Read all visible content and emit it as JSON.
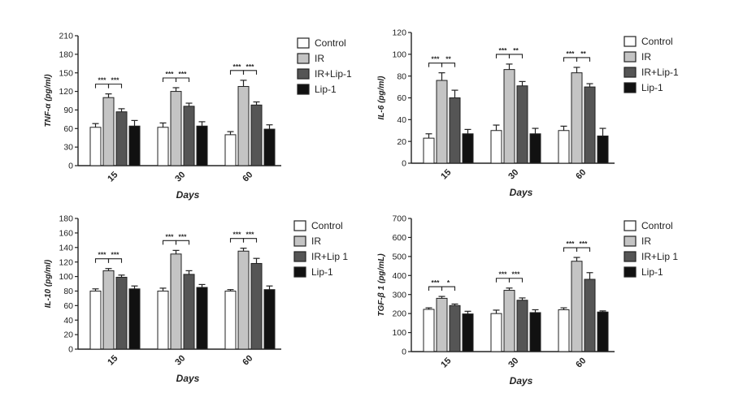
{
  "legend_series_styles": [
    "#ffffff",
    "#c4c4c4",
    "#555555",
    "#111111"
  ],
  "chart_data": [
    {
      "id": "tnf",
      "type": "bar",
      "title": "",
      "xlabel": "Days",
      "ylabel": "TNF-α (pg/ml)",
      "ylim": [
        0,
        210
      ],
      "yticks": [
        0,
        30,
        60,
        90,
        120,
        150,
        180,
        210
      ],
      "categories": [
        "15",
        "30",
        "60"
      ],
      "series": [
        {
          "name": "Control",
          "color": "#ffffff",
          "values": [
            62,
            62,
            50
          ],
          "errors": [
            6,
            7,
            5
          ]
        },
        {
          "name": "IR",
          "color": "#c4c4c4",
          "values": [
            110,
            120,
            128
          ],
          "errors": [
            6,
            6,
            10
          ]
        },
        {
          "name": "IR+Lip-1",
          "color": "#555555",
          "values": [
            87,
            96,
            98
          ],
          "errors": [
            5,
            5,
            5
          ]
        },
        {
          "name": "Lip-1",
          "color": "#111111",
          "values": [
            64,
            64,
            59
          ],
          "errors": [
            9,
            7,
            7
          ]
        }
      ],
      "significance": [
        {
          "category": 0,
          "from": 0,
          "to": 1,
          "label": "***"
        },
        {
          "category": 0,
          "from": 1,
          "to": 2,
          "label": "***"
        },
        {
          "category": 1,
          "from": 0,
          "to": 1,
          "label": "***"
        },
        {
          "category": 1,
          "from": 1,
          "to": 2,
          "label": "***"
        },
        {
          "category": 2,
          "from": 0,
          "to": 1,
          "label": "***"
        },
        {
          "category": 2,
          "from": 1,
          "to": 2,
          "label": "***"
        }
      ]
    },
    {
      "id": "il6",
      "type": "bar",
      "title": "",
      "xlabel": "Days",
      "ylabel": "IL-6 (pg/ml)",
      "ylim": [
        0,
        120
      ],
      "yticks": [
        0,
        20,
        40,
        60,
        80,
        100,
        120
      ],
      "categories": [
        "15",
        "30",
        "60"
      ],
      "series": [
        {
          "name": "Control",
          "color": "#ffffff",
          "values": [
            23,
            30,
            30
          ],
          "errors": [
            4,
            5,
            4
          ]
        },
        {
          "name": "IR",
          "color": "#c4c4c4",
          "values": [
            76,
            86,
            83
          ],
          "errors": [
            7,
            5,
            5
          ]
        },
        {
          "name": "IR+Lip-1",
          "color": "#555555",
          "values": [
            60,
            71,
            70
          ],
          "errors": [
            7,
            4,
            3
          ]
        },
        {
          "name": "Lip-1",
          "color": "#111111",
          "values": [
            27,
            27,
            25
          ],
          "errors": [
            4,
            5,
            7
          ]
        }
      ],
      "significance": [
        {
          "category": 0,
          "from": 0,
          "to": 1,
          "label": "***"
        },
        {
          "category": 0,
          "from": 1,
          "to": 2,
          "label": "**"
        },
        {
          "category": 1,
          "from": 0,
          "to": 1,
          "label": "***"
        },
        {
          "category": 1,
          "from": 1,
          "to": 2,
          "label": "**"
        },
        {
          "category": 2,
          "from": 0,
          "to": 1,
          "label": "***"
        },
        {
          "category": 2,
          "from": 1,
          "to": 2,
          "label": "**"
        }
      ]
    },
    {
      "id": "il10",
      "type": "bar",
      "title": "",
      "xlabel": "Days",
      "ylabel": "IL-10 (pg/ml)",
      "ylim": [
        0,
        180
      ],
      "yticks": [
        0,
        20,
        40,
        60,
        80,
        100,
        120,
        140,
        160,
        180
      ],
      "categories": [
        "15",
        "30",
        "60"
      ],
      "series": [
        {
          "name": "Control",
          "color": "#ffffff",
          "values": [
            80,
            80,
            80
          ],
          "errors": [
            3,
            4,
            2
          ]
        },
        {
          "name": "IR",
          "color": "#c4c4c4",
          "values": [
            108,
            131,
            135
          ],
          "errors": [
            3,
            5,
            4
          ]
        },
        {
          "name": "IR+Lip 1",
          "color": "#555555",
          "values": [
            99,
            103,
            118
          ],
          "errors": [
            3,
            5,
            7
          ]
        },
        {
          "name": "Lip-1",
          "color": "#111111",
          "values": [
            83,
            85,
            82
          ],
          "errors": [
            4,
            4,
            5
          ]
        }
      ],
      "significance": [
        {
          "category": 0,
          "from": 0,
          "to": 1,
          "label": "***"
        },
        {
          "category": 0,
          "from": 1,
          "to": 2,
          "label": "***"
        },
        {
          "category": 1,
          "from": 0,
          "to": 1,
          "label": "***"
        },
        {
          "category": 1,
          "from": 1,
          "to": 2,
          "label": "***"
        },
        {
          "category": 2,
          "from": 0,
          "to": 1,
          "label": "***"
        },
        {
          "category": 2,
          "from": 1,
          "to": 2,
          "label": "***"
        }
      ]
    },
    {
      "id": "tgf",
      "type": "bar",
      "title": "",
      "xlabel": "Days",
      "ylabel": "TGF-β 1 (pg/mL)",
      "ylim": [
        0,
        700
      ],
      "yticks": [
        0,
        100,
        200,
        300,
        400,
        500,
        600,
        700
      ],
      "categories": [
        "15",
        "30",
        "60"
      ],
      "series": [
        {
          "name": "Control",
          "color": "#ffffff",
          "values": [
            222,
            200,
            220
          ],
          "errors": [
            8,
            18,
            10
          ]
        },
        {
          "name": "IR",
          "color": "#c4c4c4",
          "values": [
            280,
            322,
            475
          ],
          "errors": [
            10,
            12,
            20
          ]
        },
        {
          "name": "IR+Lip 1",
          "color": "#555555",
          "values": [
            242,
            270,
            380
          ],
          "errors": [
            8,
            12,
            35
          ]
        },
        {
          "name": "Lip-1",
          "color": "#111111",
          "values": [
            198,
            205,
            208
          ],
          "errors": [
            14,
            15,
            6
          ]
        }
      ],
      "significance": [
        {
          "category": 0,
          "from": 0,
          "to": 1,
          "label": "***"
        },
        {
          "category": 0,
          "from": 1,
          "to": 2,
          "label": "*"
        },
        {
          "category": 1,
          "from": 0,
          "to": 1,
          "label": "***"
        },
        {
          "category": 1,
          "from": 1,
          "to": 2,
          "label": "***"
        },
        {
          "category": 2,
          "from": 0,
          "to": 1,
          "label": "***"
        },
        {
          "category": 2,
          "from": 1,
          "to": 2,
          "label": "***"
        }
      ]
    }
  ]
}
